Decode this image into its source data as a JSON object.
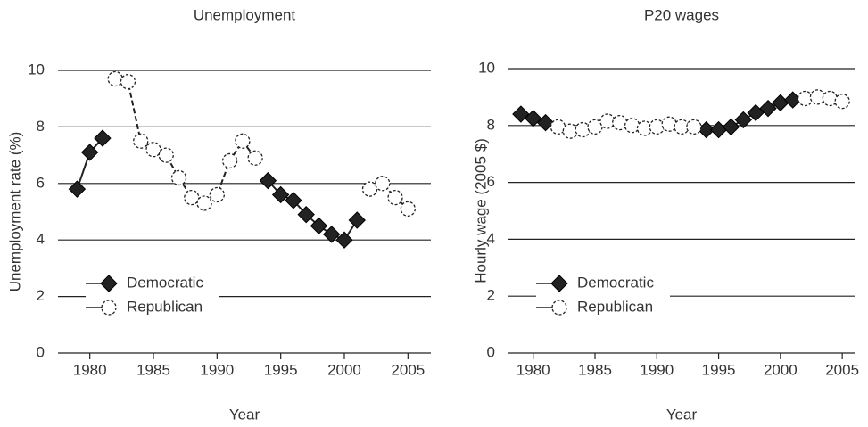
{
  "chart_data": [
    {
      "type": "line",
      "title": "Unemployment",
      "xlabel": "Year",
      "ylabel": "Unemployment rate (%)",
      "x": [
        1979,
        1980,
        1981,
        1982,
        1983,
        1984,
        1985,
        1986,
        1987,
        1988,
        1989,
        1990,
        1991,
        1992,
        1993,
        1994,
        1995,
        1996,
        1997,
        1998,
        1999,
        2000,
        2001,
        2002,
        2003,
        2004,
        2005
      ],
      "series": [
        {
          "name": "Democratic",
          "color": "#222222",
          "marker": "diamond",
          "linestyle": "solid",
          "values": [
            5.8,
            7.1,
            7.6,
            null,
            null,
            null,
            null,
            null,
            null,
            null,
            null,
            null,
            null,
            null,
            null,
            6.1,
            5.6,
            5.4,
            4.9,
            4.5,
            4.2,
            4.0,
            4.7,
            null,
            null,
            null,
            null
          ]
        },
        {
          "name": "Republican",
          "color": "#222222",
          "marker": "circle",
          "linestyle": "dashed",
          "values": [
            null,
            null,
            null,
            9.7,
            9.6,
            7.5,
            7.2,
            7.0,
            6.2,
            5.5,
            5.3,
            5.6,
            6.8,
            7.5,
            6.9,
            null,
            null,
            null,
            null,
            null,
            null,
            null,
            null,
            5.8,
            6.0,
            5.5,
            5.1
          ]
        }
      ],
      "xlim": [
        1977.5,
        2006.8
      ],
      "xticks": [
        1980,
        1985,
        1990,
        1995,
        2000,
        2005
      ],
      "ylim": [
        0,
        10
      ],
      "yticks": [
        0,
        2,
        4,
        6,
        8,
        10
      ],
      "grid": true,
      "legend": "lower left"
    },
    {
      "type": "line",
      "title": "P20 wages",
      "xlabel": "Year",
      "ylabel": "Hourly wage (2005 $)",
      "x": [
        1979,
        1980,
        1981,
        1982,
        1983,
        1984,
        1985,
        1986,
        1987,
        1988,
        1989,
        1990,
        1991,
        1992,
        1993,
        1994,
        1995,
        1996,
        1997,
        1998,
        1999,
        2000,
        2001,
        2002,
        2003,
        2004,
        2005
      ],
      "series": [
        {
          "name": "Democratic",
          "color": "#222222",
          "marker": "diamond",
          "linestyle": "solid",
          "values": [
            8.4,
            8.25,
            8.1,
            null,
            null,
            null,
            null,
            null,
            null,
            null,
            null,
            null,
            null,
            null,
            null,
            7.85,
            7.85,
            7.95,
            8.2,
            8.45,
            8.6,
            8.8,
            8.9,
            null,
            null,
            null,
            null
          ]
        },
        {
          "name": "Republican",
          "color": "#222222",
          "marker": "circle",
          "linestyle": "dashed",
          "values": [
            null,
            null,
            null,
            7.95,
            7.8,
            7.85,
            7.95,
            8.15,
            8.1,
            8.0,
            7.9,
            7.95,
            8.05,
            7.95,
            7.95,
            null,
            null,
            null,
            null,
            null,
            null,
            null,
            null,
            8.95,
            9.0,
            8.95,
            8.85
          ]
        }
      ],
      "xlim": [
        1978,
        2006
      ],
      "xticks": [
        1980,
        1985,
        1990,
        1995,
        2000,
        2005
      ],
      "ylim": [
        0,
        10
      ],
      "yticks": [
        0,
        2,
        4,
        6,
        8,
        10
      ],
      "grid": true,
      "legend": "lower left"
    }
  ]
}
